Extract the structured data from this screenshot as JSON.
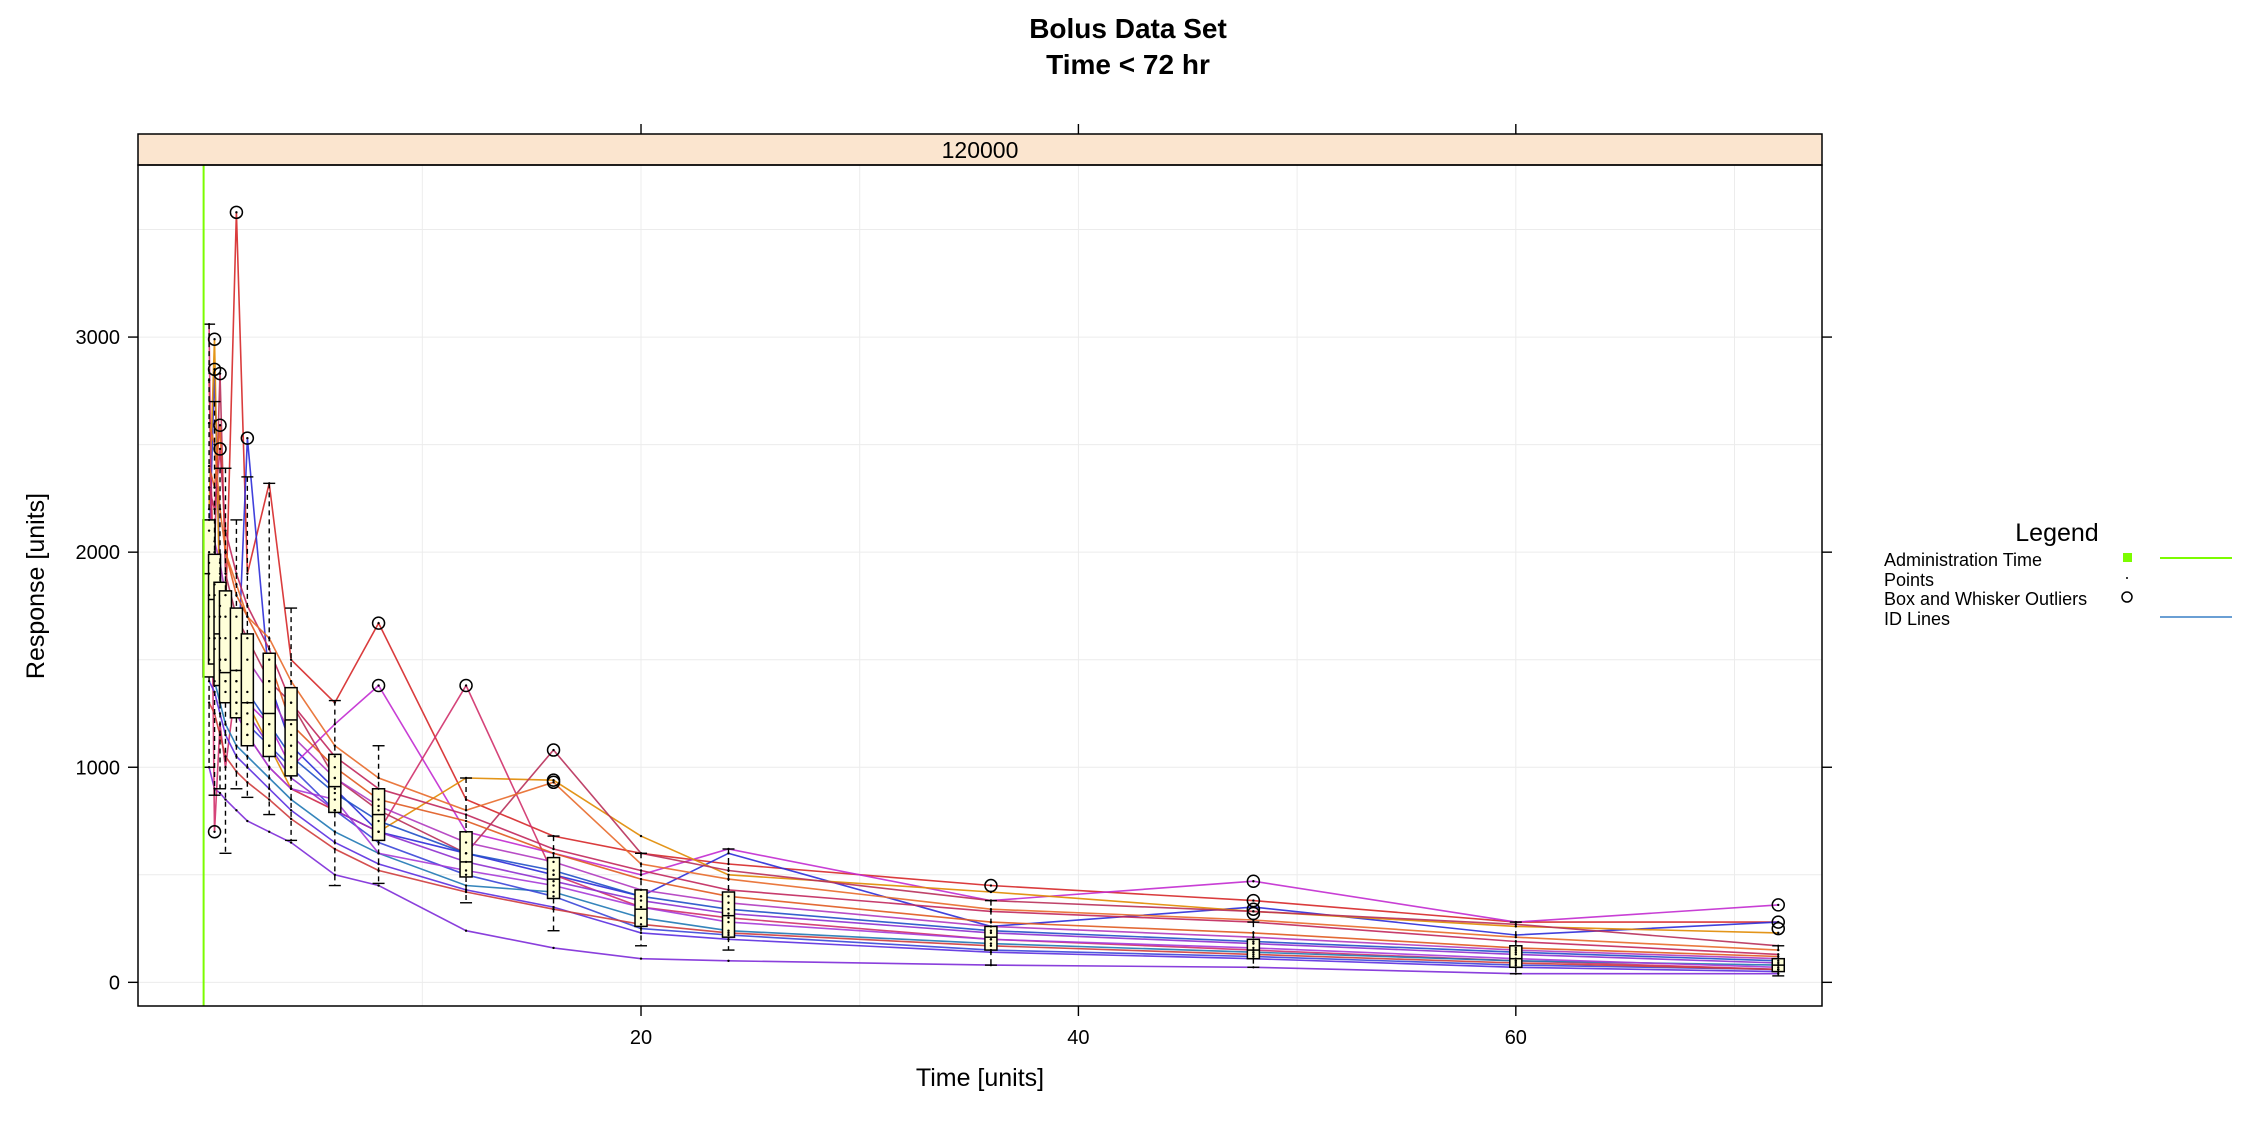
{
  "chart_data": {
    "type": "line",
    "title": "Bolus Data Set",
    "subtitle": "Time < 72 hr",
    "strip_label": "120000",
    "xlabel": "Time [units]",
    "ylabel": "Response [units]",
    "xlim": [
      -3,
      74
    ],
    "ylim": [
      -110,
      3800
    ],
    "x_ticks": [
      20,
      40,
      60
    ],
    "y_ticks": [
      0,
      1000,
      2000,
      3000
    ],
    "grid": true,
    "administration_time": 0,
    "legend": {
      "title": "Legend",
      "placement": "right",
      "items": [
        {
          "label": "Administration Time",
          "color": "#7cfc00"
        },
        {
          "label": "Points",
          "color": "#000000"
        },
        {
          "label": "Box and Whisker Outliers",
          "color": "#000000"
        },
        {
          "label": "ID Lines",
          "color": "#1e90ff"
        }
      ]
    },
    "times": [
      0.25,
      0.5,
      0.75,
      1,
      1.5,
      2,
      3,
      4,
      6,
      8,
      12,
      16,
      20,
      24,
      36,
      48,
      60,
      72
    ],
    "boxplots": [
      {
        "x": 0.25,
        "whisker_low": 1000,
        "q1": 1420,
        "median": 1900,
        "q3": 2150,
        "whisker_high": 3060,
        "outliers": []
      },
      {
        "x": 0.5,
        "whisker_low": 870,
        "q1": 1480,
        "median": 1780,
        "q3": 1990,
        "whisker_high": 2700,
        "outliers": [
          2990,
          2850,
          700
        ]
      },
      {
        "x": 0.75,
        "whisker_low": 900,
        "q1": 1380,
        "median": 1620,
        "q3": 1860,
        "whisker_high": 2390,
        "outliers": [
          2830,
          2590,
          2480
        ]
      },
      {
        "x": 1,
        "whisker_low": 600,
        "q1": 1300,
        "median": 1440,
        "q3": 1820,
        "whisker_high": 2390,
        "outliers": []
      },
      {
        "x": 1.5,
        "whisker_low": 900,
        "q1": 1230,
        "median": 1450,
        "q3": 1740,
        "whisker_high": 2150,
        "outliers": [
          3580
        ]
      },
      {
        "x": 2,
        "whisker_low": 860,
        "q1": 1100,
        "median": 1300,
        "q3": 1620,
        "whisker_high": 2350,
        "outliers": [
          2530
        ]
      },
      {
        "x": 3,
        "whisker_low": 780,
        "q1": 1050,
        "median": 1250,
        "q3": 1530,
        "whisker_high": 2320,
        "outliers": []
      },
      {
        "x": 4,
        "whisker_low": 660,
        "q1": 960,
        "median": 1220,
        "q3": 1370,
        "whisker_high": 1740,
        "outliers": []
      },
      {
        "x": 6,
        "whisker_low": 450,
        "q1": 790,
        "median": 910,
        "q3": 1060,
        "whisker_high": 1310,
        "outliers": []
      },
      {
        "x": 8,
        "whisker_low": 460,
        "q1": 660,
        "median": 780,
        "q3": 900,
        "whisker_high": 1100,
        "outliers": [
          1670,
          1380
        ]
      },
      {
        "x": 12,
        "whisker_low": 370,
        "q1": 490,
        "median": 560,
        "q3": 700,
        "whisker_high": 950,
        "outliers": [
          1380
        ]
      },
      {
        "x": 16,
        "whisker_low": 240,
        "q1": 390,
        "median": 480,
        "q3": 580,
        "whisker_high": 680,
        "outliers": [
          1080,
          940,
          930
        ]
      },
      {
        "x": 20,
        "whisker_low": 170,
        "q1": 260,
        "median": 340,
        "q3": 430,
        "whisker_high": 600,
        "outliers": []
      },
      {
        "x": 24,
        "whisker_low": 150,
        "q1": 210,
        "median": 310,
        "q3": 420,
        "whisker_high": 620,
        "outliers": []
      },
      {
        "x": 36,
        "whisker_low": 80,
        "q1": 150,
        "median": 210,
        "q3": 260,
        "whisker_high": 380,
        "outliers": [
          450
        ]
      },
      {
        "x": 48,
        "whisker_low": 70,
        "q1": 110,
        "median": 150,
        "q3": 200,
        "whisker_high": 280,
        "outliers": [
          470,
          380,
          340,
          320
        ]
      },
      {
        "x": 60,
        "whisker_low": 40,
        "q1": 70,
        "median": 110,
        "q3": 170,
        "whisker_high": 280,
        "outliers": []
      },
      {
        "x": 72,
        "whisker_low": 30,
        "q1": 50,
        "median": 80,
        "q3": 110,
        "whisker_high": 170,
        "outliers": [
          360,
          280,
          250
        ]
      }
    ],
    "series": [
      {
        "color": "#d62728",
        "values": [
          2800,
          1600,
          1500,
          1700,
          3580,
          1900,
          2320,
          1500,
          1300,
          1670,
          850,
          680,
          600,
          550,
          450,
          380,
          280,
          280
        ]
      },
      {
        "color": "#2c2cd8",
        "values": [
          2000,
          2850,
          1900,
          1500,
          1300,
          2530,
          1400,
          1100,
          900,
          700,
          600,
          500,
          400,
          600,
          260,
          350,
          220,
          280
        ]
      },
      {
        "color": "#c22ad0",
        "values": [
          1900,
          1800,
          1700,
          1500,
          1400,
          1300,
          1200,
          1000,
          1200,
          1380,
          700,
          600,
          500,
          620,
          380,
          470,
          280,
          360
        ]
      },
      {
        "color": "#e08a00",
        "values": [
          2200,
          2990,
          1700,
          1400,
          1600,
          1300,
          1100,
          900,
          800,
          700,
          950,
          940,
          680,
          500,
          420,
          330,
          260,
          230
        ]
      },
      {
        "color": "#7d2ad8",
        "values": [
          1000,
          900,
          880,
          850,
          800,
          750,
          700,
          650,
          500,
          450,
          240,
          160,
          110,
          100,
          80,
          70,
          40,
          40
        ]
      },
      {
        "color": "#d0306a",
        "values": [
          3060,
          700,
          1200,
          1000,
          1400,
          1150,
          1000,
          900,
          800,
          700,
          1380,
          500,
          350,
          300,
          200,
          150,
          100,
          60
        ]
      },
      {
        "color": "#1f78b4",
        "values": [
          1500,
          1400,
          1300,
          1200,
          1100,
          1050,
          950,
          850,
          700,
          600,
          450,
          420,
          300,
          240,
          180,
          140,
          100,
          80
        ]
      },
      {
        "color": "#b8305a",
        "values": [
          2100,
          2000,
          2830,
          1900,
          1700,
          1600,
          1400,
          1300,
          950,
          800,
          600,
          1080,
          600,
          520,
          380,
          330,
          270,
          170
        ]
      },
      {
        "color": "#3a46d8",
        "values": [
          1700,
          1600,
          1500,
          1400,
          1300,
          1200,
          1100,
          1000,
          800,
          650,
          500,
          400,
          250,
          220,
          150,
          120,
          80,
          60
        ]
      },
      {
        "color": "#e05a20",
        "values": [
          2400,
          2300,
          2590,
          2000,
          1800,
          1700,
          1500,
          1200,
          1000,
          850,
          750,
          600,
          480,
          400,
          280,
          230,
          160,
          120
        ]
      },
      {
        "color": "#a63ad8",
        "values": [
          1600,
          1550,
          1450,
          1350,
          1250,
          1150,
          1000,
          900,
          850,
          600,
          520,
          450,
          350,
          280,
          200,
          160,
          110,
          70
        ]
      },
      {
        "color": "#c1275c",
        "values": [
          2300,
          2200,
          2480,
          2100,
          1900,
          1750,
          1550,
          1300,
          1050,
          900,
          780,
          620,
          520,
          430,
          330,
          280,
          190,
          130
        ]
      },
      {
        "color": "#5b2ee0",
        "values": [
          1400,
          1350,
          1250,
          1150,
          1050,
          1000,
          900,
          800,
          650,
          550,
          430,
          350,
          230,
          200,
          140,
          110,
          70,
          50
        ]
      },
      {
        "color": "#e86a2a",
        "values": [
          2600,
          2500,
          2200,
          2000,
          1850,
          1700,
          1600,
          1400,
          1100,
          950,
          800,
          930,
          550,
          480,
          340,
          290,
          210,
          150
        ]
      },
      {
        "color": "#8e2fcf",
        "values": [
          1800,
          1700,
          1600,
          1500,
          1350,
          1250,
          1100,
          950,
          800,
          700,
          560,
          470,
          380,
          320,
          230,
          180,
          130,
          90
        ]
      },
      {
        "color": "#2050c8",
        "values": [
          1950,
          1850,
          1750,
          1600,
          1450,
          1350,
          1200,
          1050,
          880,
          750,
          600,
          520,
          400,
          340,
          240,
          190,
          140,
          100
        ]
      },
      {
        "color": "#cf3c3c",
        "values": [
          1300,
          1250,
          1150,
          1050,
          980,
          930,
          850,
          760,
          620,
          520,
          420,
          340,
          270,
          230,
          170,
          130,
          90,
          60
        ]
      },
      {
        "color": "#b03ac0",
        "values": [
          2150,
          2050,
          1950,
          1800,
          1600,
          1500,
          1350,
          1150,
          950,
          820,
          650,
          560,
          430,
          370,
          260,
          210,
          150,
          110
        ]
      }
    ]
  }
}
